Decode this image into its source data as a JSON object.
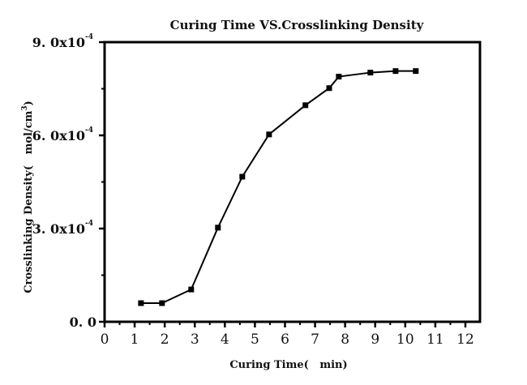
{
  "chart_data": {
    "type": "line",
    "title": "Curing Time VS.Crosslinking Density",
    "xlabel": "Curing Time(   min)",
    "ylabel": "Crosslinking Density(   mol/cm",
    "ylabel_superscript": "3",
    "ylabel_close": ")",
    "xlim": [
      0,
      12.5
    ],
    "ylim": [
      0,
      0.0009
    ],
    "x_ticks": [
      0,
      1,
      2,
      3,
      4,
      5,
      6,
      7,
      8,
      9,
      10,
      11,
      12
    ],
    "x_tick_labels": [
      "0",
      "1",
      "2",
      "3",
      "4",
      "5",
      "6",
      "7",
      "8",
      "9",
      "10",
      "11",
      "12"
    ],
    "y_ticks": [
      0,
      0.0003,
      0.0006,
      0.0009
    ],
    "y_tick_labels": [
      {
        "mantissa": "0. 0",
        "exp": ""
      },
      {
        "mantissa": "3. 0x10",
        "exp": "-4"
      },
      {
        "mantissa": "6. 0x10",
        "exp": "-4"
      },
      {
        "mantissa": "9. 0x10",
        "exp": "-4"
      }
    ],
    "y_minor_ticks": [
      0.00015,
      0.00045,
      0.00075
    ],
    "grid": false,
    "legend": "none",
    "series": [
      {
        "name": "Crosslinking Density",
        "marker": "square",
        "color": "#000000",
        "x": [
          1.21,
          1.91,
          2.88,
          3.77,
          4.58,
          5.47,
          6.68,
          7.47,
          7.79,
          8.84,
          9.68,
          10.35
        ],
        "y": [
          6e-05,
          6e-05,
          0.000104,
          0.000303,
          0.000467,
          0.000603,
          0.000697,
          0.000752,
          0.000789,
          0.000802,
          0.000807,
          0.000807
        ]
      }
    ]
  }
}
